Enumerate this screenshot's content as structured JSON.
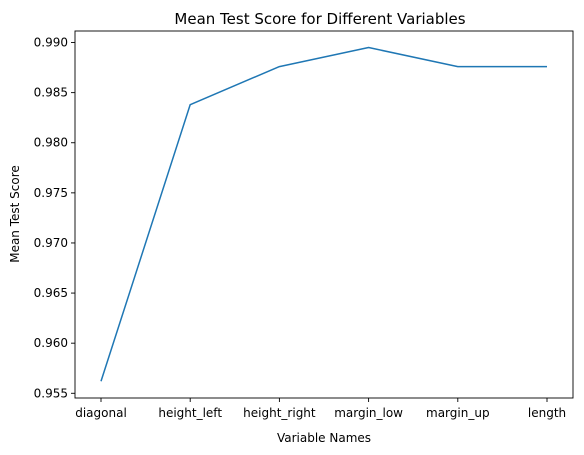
{
  "chart_data": {
    "type": "line",
    "title": "Mean Test Score for Different Variables",
    "xlabel": "Variable Names",
    "ylabel": "Mean Test Score",
    "categories": [
      "diagonal",
      "height_left",
      "height_right",
      "margin_low",
      "margin_up",
      "length"
    ],
    "series": [
      {
        "values": [
          0.9562,
          0.9838,
          0.9876,
          0.9895,
          0.9876,
          0.9876
        ],
        "color": "#1f77b4"
      }
    ],
    "yticks": [
      0.955,
      0.96,
      0.965,
      0.97,
      0.975,
      0.98,
      0.985,
      0.99
    ],
    "ytick_labels": [
      "0.955",
      "0.960",
      "0.965",
      "0.970",
      "0.975",
      "0.980",
      "0.985",
      "0.990"
    ],
    "ylim": [
      0.95453,
      0.99115
    ],
    "grid": false,
    "legend": "none"
  }
}
